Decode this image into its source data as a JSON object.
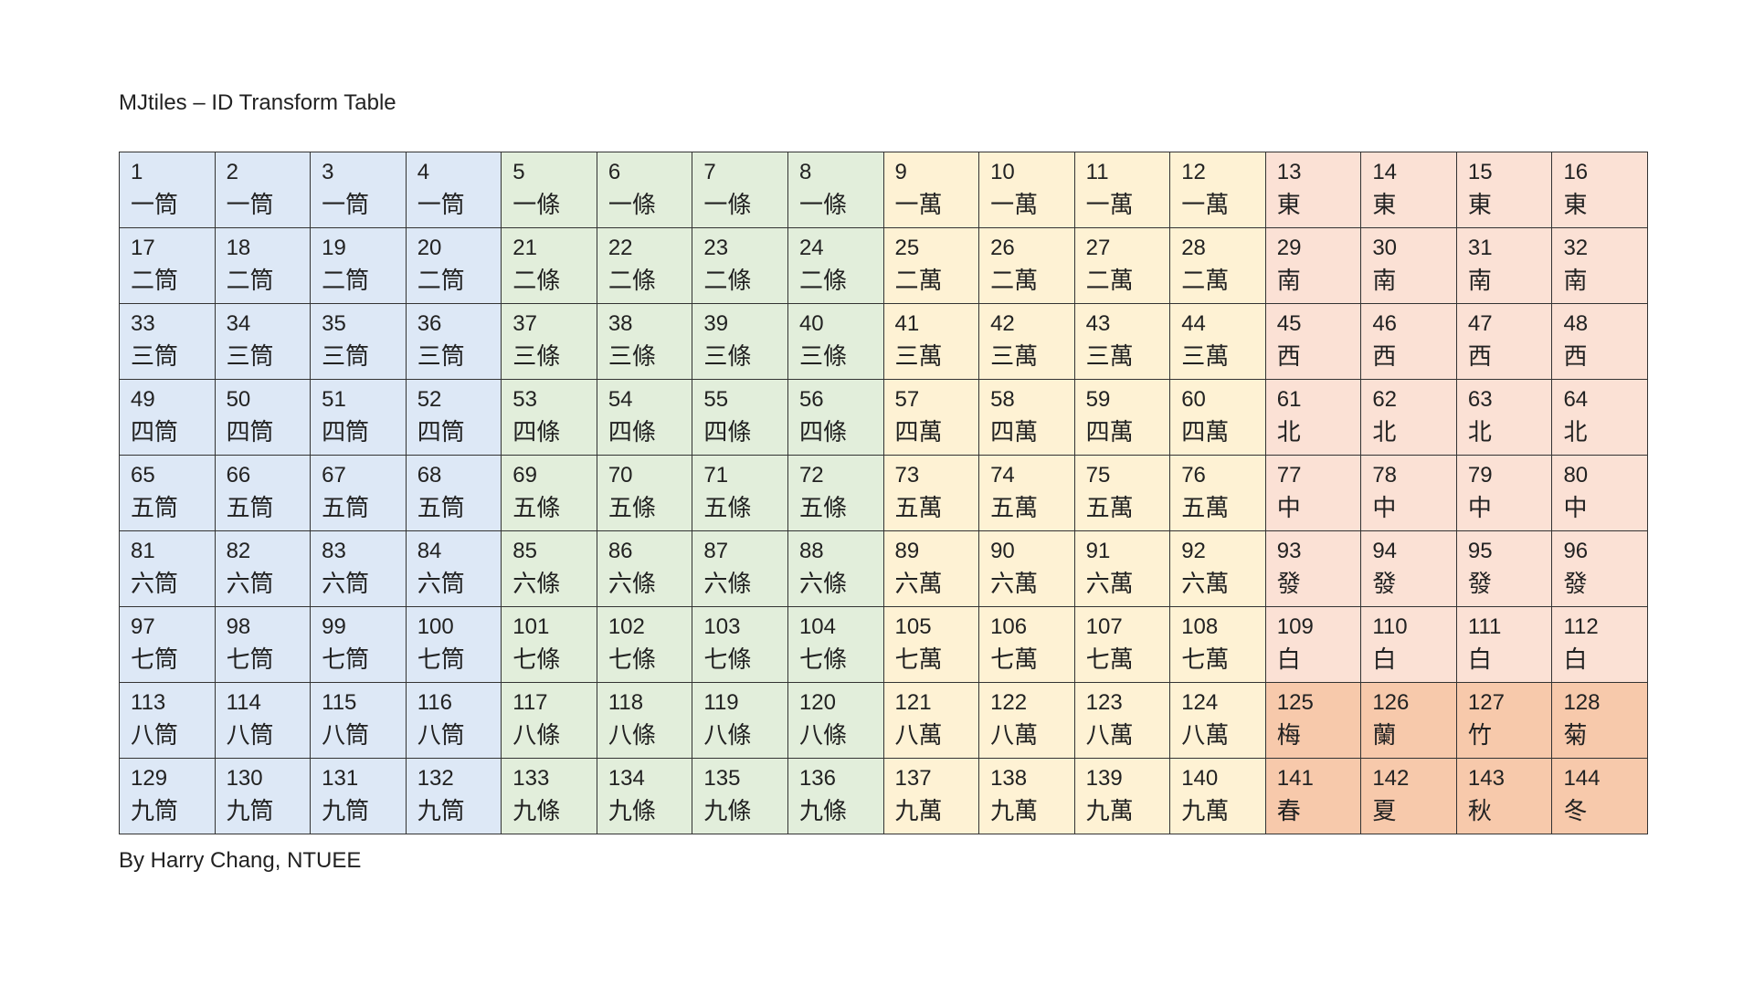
{
  "title": "MJtiles – ID Transform Table",
  "footer": "By Harry Chang, NTUEE",
  "colors": {
    "tong": "#dde8f6",
    "tiao": "#e2eedb",
    "wan": "#fef2d4",
    "honor": "#fbe1d5",
    "flower": "#f7c9ab"
  },
  "rows": [
    [
      {
        "id": "1",
        "name": "一筒",
        "color": "tong"
      },
      {
        "id": "2",
        "name": "一筒",
        "color": "tong"
      },
      {
        "id": "3",
        "name": "一筒",
        "color": "tong"
      },
      {
        "id": "4",
        "name": "一筒",
        "color": "tong"
      },
      {
        "id": "5",
        "name": "一條",
        "color": "tiao"
      },
      {
        "id": "6",
        "name": "一條",
        "color": "tiao"
      },
      {
        "id": "7",
        "name": "一條",
        "color": "tiao"
      },
      {
        "id": "8",
        "name": "一條",
        "color": "tiao"
      },
      {
        "id": "9",
        "name": "一萬",
        "color": "wan"
      },
      {
        "id": "10",
        "name": "一萬",
        "color": "wan"
      },
      {
        "id": "11",
        "name": "一萬",
        "color": "wan"
      },
      {
        "id": "12",
        "name": "一萬",
        "color": "wan"
      },
      {
        "id": "13",
        "name": "東",
        "color": "honor"
      },
      {
        "id": "14",
        "name": "東",
        "color": "honor"
      },
      {
        "id": "15",
        "name": "東",
        "color": "honor"
      },
      {
        "id": "16",
        "name": "東",
        "color": "honor"
      }
    ],
    [
      {
        "id": "17",
        "name": "二筒",
        "color": "tong"
      },
      {
        "id": "18",
        "name": "二筒",
        "color": "tong"
      },
      {
        "id": "19",
        "name": "二筒",
        "color": "tong"
      },
      {
        "id": "20",
        "name": "二筒",
        "color": "tong"
      },
      {
        "id": "21",
        "name": "二條",
        "color": "tiao"
      },
      {
        "id": "22",
        "name": "二條",
        "color": "tiao"
      },
      {
        "id": "23",
        "name": "二條",
        "color": "tiao"
      },
      {
        "id": "24",
        "name": "二條",
        "color": "tiao"
      },
      {
        "id": "25",
        "name": "二萬",
        "color": "wan"
      },
      {
        "id": "26",
        "name": "二萬",
        "color": "wan"
      },
      {
        "id": "27",
        "name": "二萬",
        "color": "wan"
      },
      {
        "id": "28",
        "name": "二萬",
        "color": "wan"
      },
      {
        "id": "29",
        "name": "南",
        "color": "honor"
      },
      {
        "id": "30",
        "name": "南",
        "color": "honor"
      },
      {
        "id": "31",
        "name": "南",
        "color": "honor"
      },
      {
        "id": "32",
        "name": "南",
        "color": "honor"
      }
    ],
    [
      {
        "id": "33",
        "name": "三筒",
        "color": "tong"
      },
      {
        "id": "34",
        "name": "三筒",
        "color": "tong"
      },
      {
        "id": "35",
        "name": "三筒",
        "color": "tong"
      },
      {
        "id": "36",
        "name": "三筒",
        "color": "tong"
      },
      {
        "id": "37",
        "name": "三條",
        "color": "tiao"
      },
      {
        "id": "38",
        "name": "三條",
        "color": "tiao"
      },
      {
        "id": "39",
        "name": "三條",
        "color": "tiao"
      },
      {
        "id": "40",
        "name": "三條",
        "color": "tiao"
      },
      {
        "id": "41",
        "name": "三萬",
        "color": "wan"
      },
      {
        "id": "42",
        "name": "三萬",
        "color": "wan"
      },
      {
        "id": "43",
        "name": "三萬",
        "color": "wan"
      },
      {
        "id": "44",
        "name": "三萬",
        "color": "wan"
      },
      {
        "id": "45",
        "name": "西",
        "color": "honor"
      },
      {
        "id": "46",
        "name": "西",
        "color": "honor"
      },
      {
        "id": "47",
        "name": "西",
        "color": "honor"
      },
      {
        "id": "48",
        "name": "西",
        "color": "honor"
      }
    ],
    [
      {
        "id": "49",
        "name": "四筒",
        "color": "tong"
      },
      {
        "id": "50",
        "name": "四筒",
        "color": "tong"
      },
      {
        "id": "51",
        "name": "四筒",
        "color": "tong"
      },
      {
        "id": "52",
        "name": "四筒",
        "color": "tong"
      },
      {
        "id": "53",
        "name": "四條",
        "color": "tiao"
      },
      {
        "id": "54",
        "name": "四條",
        "color": "tiao"
      },
      {
        "id": "55",
        "name": "四條",
        "color": "tiao"
      },
      {
        "id": "56",
        "name": "四條",
        "color": "tiao"
      },
      {
        "id": "57",
        "name": "四萬",
        "color": "wan"
      },
      {
        "id": "58",
        "name": "四萬",
        "color": "wan"
      },
      {
        "id": "59",
        "name": "四萬",
        "color": "wan"
      },
      {
        "id": "60",
        "name": "四萬",
        "color": "wan"
      },
      {
        "id": "61",
        "name": "北",
        "color": "honor"
      },
      {
        "id": "62",
        "name": "北",
        "color": "honor"
      },
      {
        "id": "63",
        "name": "北",
        "color": "honor"
      },
      {
        "id": "64",
        "name": "北",
        "color": "honor"
      }
    ],
    [
      {
        "id": "65",
        "name": "五筒",
        "color": "tong"
      },
      {
        "id": "66",
        "name": "五筒",
        "color": "tong"
      },
      {
        "id": "67",
        "name": "五筒",
        "color": "tong"
      },
      {
        "id": "68",
        "name": "五筒",
        "color": "tong"
      },
      {
        "id": "69",
        "name": "五條",
        "color": "tiao"
      },
      {
        "id": "70",
        "name": "五條",
        "color": "tiao"
      },
      {
        "id": "71",
        "name": "五條",
        "color": "tiao"
      },
      {
        "id": "72",
        "name": "五條",
        "color": "tiao"
      },
      {
        "id": "73",
        "name": "五萬",
        "color": "wan"
      },
      {
        "id": "74",
        "name": "五萬",
        "color": "wan"
      },
      {
        "id": "75",
        "name": "五萬",
        "color": "wan"
      },
      {
        "id": "76",
        "name": "五萬",
        "color": "wan"
      },
      {
        "id": "77",
        "name": "中",
        "color": "honor"
      },
      {
        "id": "78",
        "name": "中",
        "color": "honor"
      },
      {
        "id": "79",
        "name": "中",
        "color": "honor"
      },
      {
        "id": "80",
        "name": "中",
        "color": "honor"
      }
    ],
    [
      {
        "id": "81",
        "name": "六筒",
        "color": "tong"
      },
      {
        "id": "82",
        "name": "六筒",
        "color": "tong"
      },
      {
        "id": "83",
        "name": "六筒",
        "color": "tong"
      },
      {
        "id": "84",
        "name": "六筒",
        "color": "tong"
      },
      {
        "id": "85",
        "name": "六條",
        "color": "tiao"
      },
      {
        "id": "86",
        "name": "六條",
        "color": "tiao"
      },
      {
        "id": "87",
        "name": "六條",
        "color": "tiao"
      },
      {
        "id": "88",
        "name": "六條",
        "color": "tiao"
      },
      {
        "id": "89",
        "name": "六萬",
        "color": "wan"
      },
      {
        "id": "90",
        "name": "六萬",
        "color": "wan"
      },
      {
        "id": "91",
        "name": "六萬",
        "color": "wan"
      },
      {
        "id": "92",
        "name": "六萬",
        "color": "wan"
      },
      {
        "id": "93",
        "name": "發",
        "color": "honor"
      },
      {
        "id": "94",
        "name": "發",
        "color": "honor"
      },
      {
        "id": "95",
        "name": "發",
        "color": "honor"
      },
      {
        "id": "96",
        "name": "發",
        "color": "honor"
      }
    ],
    [
      {
        "id": "97",
        "name": "七筒",
        "color": "tong"
      },
      {
        "id": "98",
        "name": "七筒",
        "color": "tong"
      },
      {
        "id": "99",
        "name": "七筒",
        "color": "tong"
      },
      {
        "id": "100",
        "name": "七筒",
        "color": "tong"
      },
      {
        "id": "101",
        "name": "七條",
        "color": "tiao"
      },
      {
        "id": "102",
        "name": "七條",
        "color": "tiao"
      },
      {
        "id": "103",
        "name": "七條",
        "color": "tiao"
      },
      {
        "id": "104",
        "name": "七條",
        "color": "tiao"
      },
      {
        "id": "105",
        "name": "七萬",
        "color": "wan"
      },
      {
        "id": "106",
        "name": "七萬",
        "color": "wan"
      },
      {
        "id": "107",
        "name": "七萬",
        "color": "wan"
      },
      {
        "id": "108",
        "name": "七萬",
        "color": "wan"
      },
      {
        "id": "109",
        "name": "白",
        "color": "honor"
      },
      {
        "id": "110",
        "name": "白",
        "color": "honor"
      },
      {
        "id": "111",
        "name": "白",
        "color": "honor"
      },
      {
        "id": "112",
        "name": "白",
        "color": "honor"
      }
    ],
    [
      {
        "id": "113",
        "name": "八筒",
        "color": "tong"
      },
      {
        "id": "114",
        "name": "八筒",
        "color": "tong"
      },
      {
        "id": "115",
        "name": "八筒",
        "color": "tong"
      },
      {
        "id": "116",
        "name": "八筒",
        "color": "tong"
      },
      {
        "id": "117",
        "name": "八條",
        "color": "tiao"
      },
      {
        "id": "118",
        "name": "八條",
        "color": "tiao"
      },
      {
        "id": "119",
        "name": "八條",
        "color": "tiao"
      },
      {
        "id": "120",
        "name": "八條",
        "color": "tiao"
      },
      {
        "id": "121",
        "name": "八萬",
        "color": "wan"
      },
      {
        "id": "122",
        "name": "八萬",
        "color": "wan"
      },
      {
        "id": "123",
        "name": "八萬",
        "color": "wan"
      },
      {
        "id": "124",
        "name": "八萬",
        "color": "wan"
      },
      {
        "id": "125",
        "name": "梅",
        "color": "flower"
      },
      {
        "id": "126",
        "name": "蘭",
        "color": "flower"
      },
      {
        "id": "127",
        "name": "竹",
        "color": "flower"
      },
      {
        "id": "128",
        "name": "菊",
        "color": "flower"
      }
    ],
    [
      {
        "id": "129",
        "name": "九筒",
        "color": "tong"
      },
      {
        "id": "130",
        "name": "九筒",
        "color": "tong"
      },
      {
        "id": "131",
        "name": "九筒",
        "color": "tong"
      },
      {
        "id": "132",
        "name": "九筒",
        "color": "tong"
      },
      {
        "id": "133",
        "name": "九條",
        "color": "tiao"
      },
      {
        "id": "134",
        "name": "九條",
        "color": "tiao"
      },
      {
        "id": "135",
        "name": "九條",
        "color": "tiao"
      },
      {
        "id": "136",
        "name": "九條",
        "color": "tiao"
      },
      {
        "id": "137",
        "name": "九萬",
        "color": "wan"
      },
      {
        "id": "138",
        "name": "九萬",
        "color": "wan"
      },
      {
        "id": "139",
        "name": "九萬",
        "color": "wan"
      },
      {
        "id": "140",
        "name": "九萬",
        "color": "wan"
      },
      {
        "id": "141",
        "name": "春",
        "color": "flower"
      },
      {
        "id": "142",
        "name": "夏",
        "color": "flower"
      },
      {
        "id": "143",
        "name": "秋",
        "color": "flower"
      },
      {
        "id": "144",
        "name": "冬",
        "color": "flower"
      }
    ]
  ]
}
